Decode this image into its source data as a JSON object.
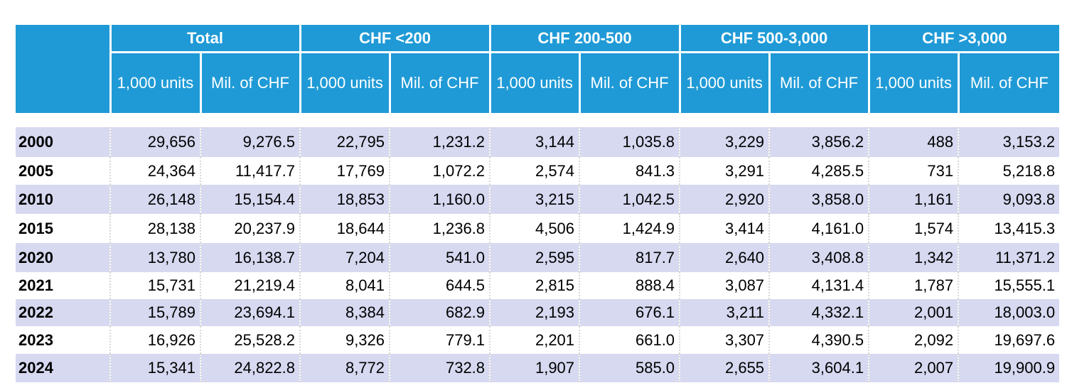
{
  "header": {
    "groups": [
      "Total",
      "CHF <200",
      "CHF 200-500",
      "CHF 500-3,000",
      "CHF >3,000"
    ],
    "subheaders": [
      "1,000 units",
      "Mil. of CHF",
      "1,000 units",
      "Mil. of CHF",
      "1,000 units",
      "Mil. of CHF",
      "1,000 units",
      "Mil. of CHF",
      "1,000 units",
      "Mil. of CHF"
    ]
  },
  "table": {
    "rows": [
      [
        "2000",
        "29,656",
        "9,276.5",
        "22,795",
        "1,231.2",
        "3,144",
        "1,035.8",
        "3,229",
        "3,856.2",
        "488",
        "3,153.2"
      ],
      [
        "2005",
        "24,364",
        "11,417.7",
        "17,769",
        "1,072.2",
        "2,574",
        "841.3",
        "3,291",
        "4,285.5",
        "731",
        "5,218.8"
      ],
      [
        "2010",
        "26,148",
        "15,154.4",
        "18,853",
        "1,160.0",
        "3,215",
        "1,042.5",
        "2,920",
        "3,858.0",
        "1,161",
        "9,093.8"
      ],
      [
        "2015",
        "28,138",
        "20,237.9",
        "18,644",
        "1,236.8",
        "4,506",
        "1,424.9",
        "3,414",
        "4,161.0",
        "1,574",
        "13,415.3"
      ],
      [
        "2020",
        "13,780",
        "16,138.7",
        "7,204",
        "541.0",
        "2,595",
        "817.7",
        "2,640",
        "3,408.8",
        "1,342",
        "11,371.2"
      ],
      [
        "2021",
        "15,731",
        "21,219.4",
        "8,041",
        "644.5",
        "2,815",
        "888.4",
        "3,087",
        "4,131.4",
        "1,787",
        "15,555.1"
      ],
      [
        "2022",
        "15,789",
        "23,694.1",
        "8,384",
        "682.9",
        "2,193",
        "676.1",
        "3,211",
        "4,332.1",
        "2,001",
        "18,003.0"
      ],
      [
        "2023",
        "16,926",
        "25,528.2",
        "9,326",
        "779.1",
        "2,201",
        "661.0",
        "3,307",
        "4,390.5",
        "2,092",
        "19,697.6"
      ],
      [
        "2024",
        "15,341",
        "24,822.8",
        "8,772",
        "732.8",
        "1,907",
        "585.0",
        "2,655",
        "3,604.1",
        "2,007",
        "19,900.9"
      ]
    ]
  }
}
